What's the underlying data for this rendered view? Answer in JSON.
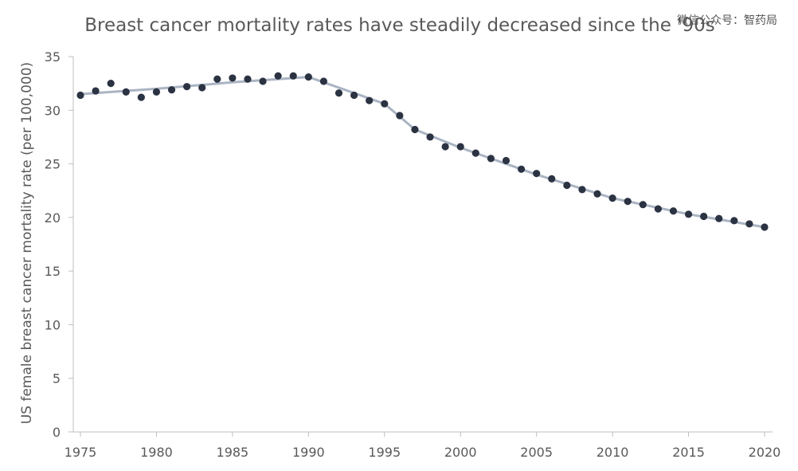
{
  "chart_data": {
    "type": "scatter",
    "title": "Breast cancer mortality rates have steadily decreased since the '90s",
    "watermark": "微信公众号：智药局",
    "ylabel": "US female breast cancer mortality rate (per 100,000)",
    "xlabel": "",
    "xlim": [
      1975,
      2020
    ],
    "ylim": [
      0,
      35
    ],
    "x_ticks": [
      "1975",
      "1980",
      "1985",
      "1990",
      "1995",
      "2000",
      "2005",
      "2010",
      "2015",
      "2020"
    ],
    "y_ticks": [
      "0",
      "5",
      "10",
      "15",
      "20",
      "25",
      "30",
      "35"
    ],
    "grid": false,
    "legend": "none",
    "series": [
      {
        "points": {
          "x": [
            1975,
            1976,
            1977,
            1978,
            1979,
            1980,
            1981,
            1982,
            1983,
            1984,
            1985,
            1986,
            1987,
            1988,
            1989,
            1990,
            1991,
            1992,
            1993,
            1994,
            1995,
            1996,
            1997,
            1998,
            1999,
            2000,
            2001,
            2002,
            2003,
            2004,
            2005,
            2006,
            2007,
            2008,
            2009,
            2010,
            2011,
            2012,
            2013,
            2014,
            2015,
            2016,
            2017,
            2018,
            2019,
            2020
          ],
          "y": [
            31.4,
            31.8,
            32.5,
            31.7,
            31.2,
            31.7,
            31.9,
            32.2,
            32.1,
            32.9,
            33.0,
            32.9,
            32.7,
            33.2,
            33.2,
            33.1,
            32.7,
            31.6,
            31.4,
            30.9,
            30.6,
            29.5,
            28.2,
            27.5,
            26.6,
            26.6,
            26.0,
            25.5,
            25.3,
            24.5,
            24.1,
            23.6,
            23.0,
            22.6,
            22.2,
            21.8,
            21.5,
            21.2,
            20.8,
            20.6,
            20.3,
            20.1,
            19.9,
            19.7,
            19.4,
            19.1
          ]
        },
        "trend": {
          "x": [
            1975,
            1980,
            1985,
            1990,
            1995,
            1997,
            2000,
            2005,
            2010,
            2015,
            2020
          ],
          "y": [
            31.5,
            32.0,
            32.6,
            33.1,
            30.6,
            28.2,
            26.5,
            24.0,
            21.8,
            20.3,
            19.1
          ]
        }
      }
    ]
  }
}
